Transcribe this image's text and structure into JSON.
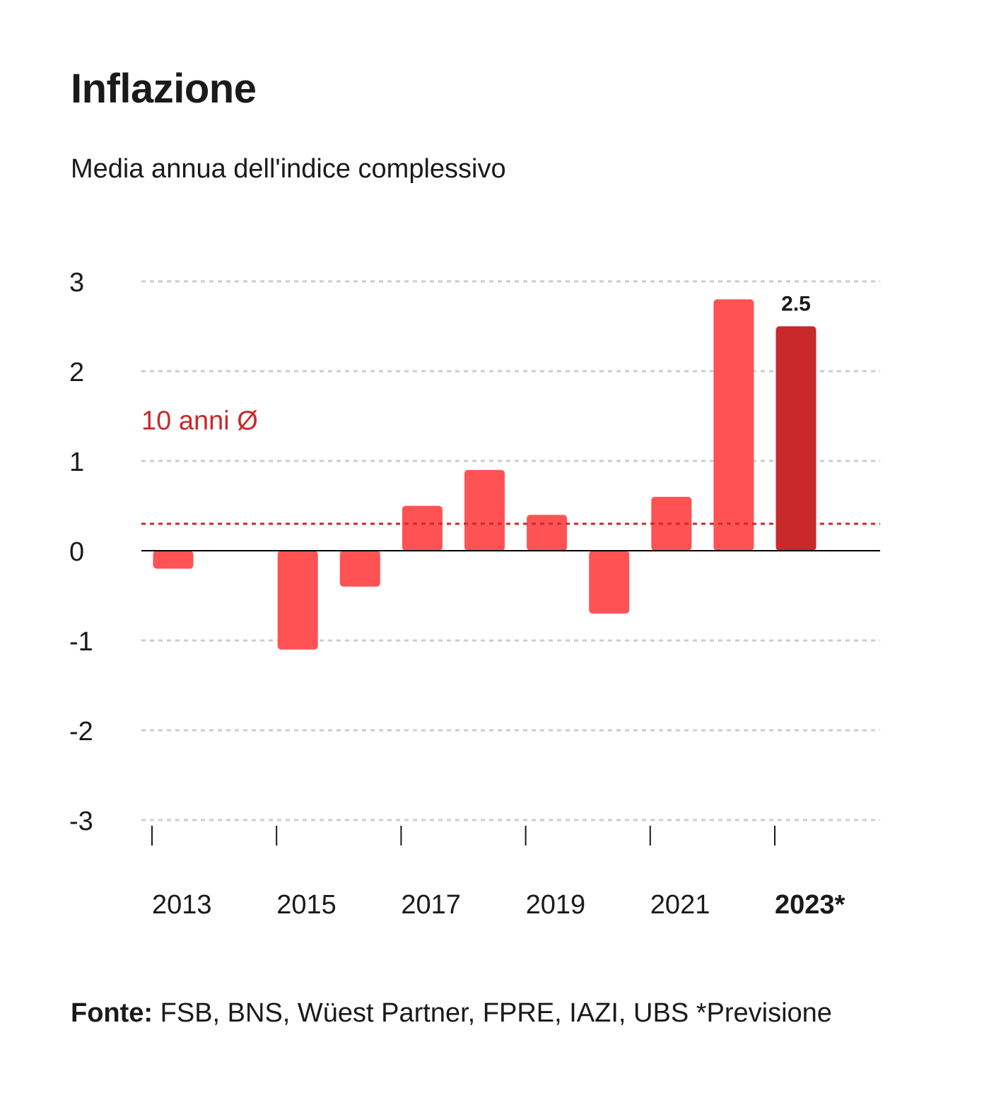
{
  "header": {
    "title": "Inflazione",
    "subtitle": "Media annua dell'indice complessivo"
  },
  "footer": {
    "source_label": "Fonte:",
    "source_text": " FSB, BNS, Wüest Partner, FPRE, IAZI, UBS *Previsione"
  },
  "chart_data": {
    "type": "bar",
    "categories": [
      "2013",
      "2014",
      "2015",
      "2016",
      "2017",
      "2018",
      "2019",
      "2020",
      "2021",
      "2022",
      "2023*"
    ],
    "values": [
      -0.2,
      null,
      -1.1,
      -0.4,
      0.5,
      0.9,
      0.4,
      -0.7,
      0.6,
      2.8,
      2.5
    ],
    "tick_labels": [
      "2013",
      "2015",
      "2017",
      "2019",
      "2021",
      "2023*"
    ],
    "y_ticks": [
      "3",
      "2",
      "1",
      "0",
      "-1",
      "-2",
      "-3"
    ],
    "ylim": [
      -3,
      3
    ],
    "highlight_category": "2023*",
    "highlight_label": "2.5",
    "reference_line": {
      "label": "10 anni Ø",
      "value": 0.3
    },
    "grid": true,
    "colors": {
      "bar": "#ff5254",
      "highlight": "#c9292b",
      "reference": "#c9292b",
      "grid": "#cccccc",
      "zero": "#000000"
    }
  }
}
